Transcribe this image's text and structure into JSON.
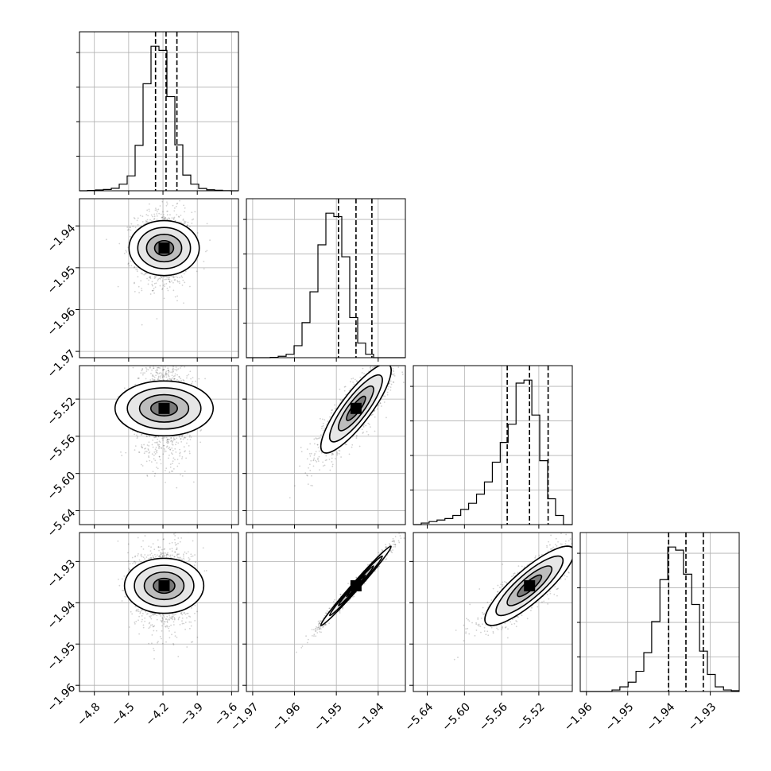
{
  "chart_data": {
    "type": "corner",
    "grid": true,
    "parameters": [
      {
        "ticks": [
          -4.8,
          -4.5,
          -4.2,
          -3.9,
          -3.6
        ],
        "tick_labels": [
          "−4.8",
          "−4.5",
          "−4.2",
          "−3.9",
          "−3.6"
        ],
        "range": [
          -4.93,
          -3.54
        ]
      },
      {
        "ticks": [
          -1.97,
          -1.96,
          -1.95,
          -1.94
        ],
        "tick_labels": [
          "−1.97",
          "−1.96",
          "−1.95",
          "−1.94"
        ],
        "range": [
          -1.9715,
          -1.9335
        ]
      },
      {
        "ticks": [
          -5.64,
          -5.6,
          -5.56,
          -5.52
        ],
        "tick_labels": [
          "−5.64",
          "−5.60",
          "−5.56",
          "−5.52"
        ],
        "range": [
          -5.655,
          -5.484
        ]
      },
      {
        "ticks": [
          -1.96,
          -1.95,
          -1.94,
          -1.93
        ],
        "tick_labels": [
          "−1.96",
          "−1.95",
          "−1.94",
          "−1.93"
        ],
        "range": [
          -1.9615,
          -1.923
        ]
      }
    ],
    "histograms": [
      {
        "param": 0,
        "quantiles": [
          -4.265,
          -4.173,
          -4.078
        ],
        "edges": [
          -4.93,
          -4.8605,
          -4.791,
          -4.7215,
          -4.652,
          -4.5825,
          -4.513,
          -4.4435,
          -4.374,
          -4.3045,
          -4.235,
          -4.1655,
          -4.096,
          -4.0265,
          -3.957,
          -3.8875,
          -3.818,
          -3.7485,
          -3.679,
          -3.6095,
          -3.54
        ],
        "counts": [
          0,
          2,
          5,
          8,
          15,
          40,
          90,
          275,
          648,
          875,
          850,
          570,
          278,
          95,
          40,
          14,
          6,
          3,
          1,
          0
        ]
      },
      {
        "param": 1,
        "quantiles": [
          -1.9495,
          -1.9453,
          -1.9415
        ],
        "edges": [
          -1.9715,
          -1.9696,
          -1.9677,
          -1.9658,
          -1.9639,
          -1.962,
          -1.9601,
          -1.9582,
          -1.9563,
          -1.9544,
          -1.9525,
          -1.9506,
          -1.9487,
          -1.9468,
          -1.9449,
          -1.943,
          -1.9411,
          -1.9392,
          -1.9373,
          -1.9354,
          -1.9335
        ],
        "counts": [
          0,
          0,
          0,
          2,
          8,
          20,
          70,
          205,
          385,
          660,
          845,
          825,
          590,
          235,
          85,
          20,
          0,
          0,
          0,
          0
        ]
      },
      {
        "param": 2,
        "quantiles": [
          -5.554,
          -5.53,
          -5.51
        ],
        "edges": [
          -5.655,
          -5.6465,
          -5.638,
          -5.6295,
          -5.621,
          -5.6125,
          -5.604,
          -5.5955,
          -5.587,
          -5.5785,
          -5.57,
          -5.5615,
          -5.553,
          -5.5445,
          -5.536,
          -5.5275,
          -5.519,
          -5.5105,
          -5.502,
          -5.4935,
          -5.484
        ],
        "counts": [
          0,
          10,
          20,
          30,
          40,
          60,
          100,
          140,
          200,
          280,
          410,
          540,
          660,
          930,
          950,
          720,
          420,
          170,
          60,
          0
        ]
      },
      {
        "param": 3,
        "quantiles": [
          -1.9401,
          -1.9359,
          -1.9317
        ],
        "edges": [
          -1.9615,
          -1.9596,
          -1.9576,
          -1.9557,
          -1.9538,
          -1.9519,
          -1.9499,
          -1.948,
          -1.9461,
          -1.9442,
          -1.9422,
          -1.9403,
          -1.9384,
          -1.9365,
          -1.9345,
          -1.9326,
          -1.9307,
          -1.9288,
          -1.9268,
          -1.9249,
          -1.923
        ],
        "counts": [
          0,
          0,
          0,
          0,
          10,
          30,
          60,
          130,
          250,
          450,
          720,
          930,
          910,
          755,
          560,
          260,
          110,
          30,
          10,
          5
        ]
      }
    ],
    "scatter_2d": [
      {
        "x_param": 0,
        "y_param": 1,
        "center": [
          -4.19,
          -1.9453
        ],
        "sd": [
          0.1,
          0.0035
        ],
        "corr": 0.0
      },
      {
        "x_param": 0,
        "y_param": 2,
        "center": [
          -4.19,
          -5.53
        ],
        "sd": [
          0.1,
          0.022
        ],
        "corr": 0.0
      },
      {
        "x_param": 1,
        "y_param": 2,
        "center": [
          -1.9453,
          -5.53
        ],
        "sd": [
          0.0035,
          0.02
        ],
        "corr": 0.85
      },
      {
        "x_param": 0,
        "y_param": 3,
        "center": [
          -4.19,
          -1.9359
        ],
        "sd": [
          0.1,
          0.004
        ],
        "corr": 0.0
      },
      {
        "x_param": 1,
        "y_param": 3,
        "center": [
          -1.9453,
          -1.9359
        ],
        "sd": [
          0.0035,
          0.004
        ],
        "corr": 0.99
      },
      {
        "x_param": 2,
        "y_param": 3,
        "center": [
          -5.53,
          -1.9359
        ],
        "sd": [
          0.02,
          0.004
        ],
        "corr": 0.85
      }
    ]
  }
}
